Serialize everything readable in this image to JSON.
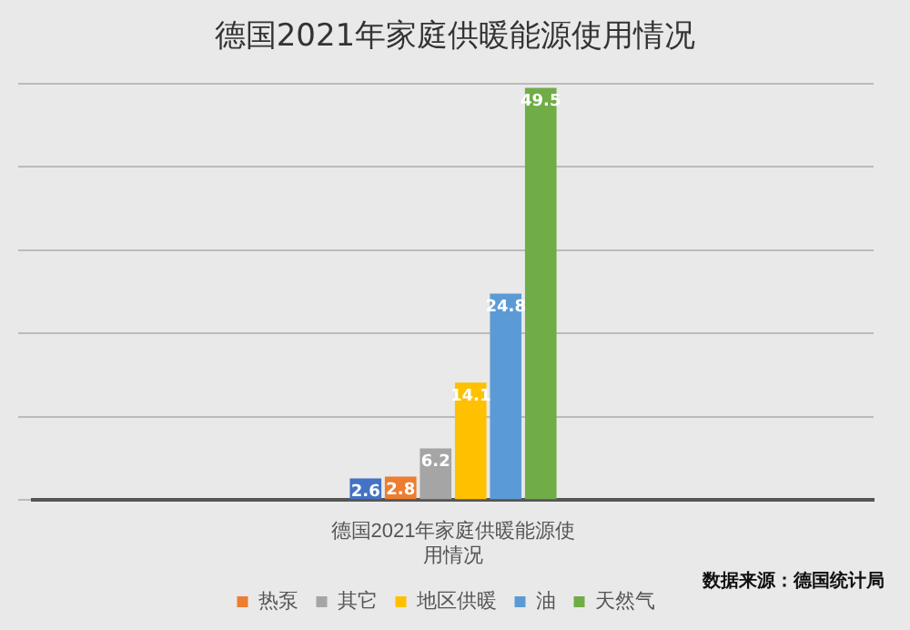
{
  "chart_data": {
    "type": "bar",
    "title": "德国2021年家庭供暖能源使用情况",
    "categories": [
      "德国2021年家庭供暖能源使用情况"
    ],
    "series": [
      {
        "color": "#4472c4",
        "values": [
          2.6
        ]
      },
      {
        "name": "热泵",
        "color": "#ed7d31",
        "values": [
          2.8
        ]
      },
      {
        "name": "其它",
        "color": "#a5a5a5",
        "values": [
          6.2
        ]
      },
      {
        "name": "地区供暖",
        "color": "#ffc000",
        "values": [
          14.1
        ]
      },
      {
        "name": "油",
        "color": "#5b9bd5",
        "values": [
          24.8
        ]
      },
      {
        "name": "天然气",
        "color": "#70ad47",
        "values": [
          49.5
        ]
      }
    ],
    "ylim": [
      0,
      50
    ],
    "yticks": [
      {
        "value": 0,
        "label": null
      },
      {
        "value": 10,
        "label": null
      },
      {
        "value": 20,
        "label": null
      },
      {
        "value": 30,
        "label": null
      },
      {
        "value": 40,
        "label": null
      },
      {
        "value": 50,
        "label": null
      }
    ],
    "tick_labels": "x",
    "grid": "y",
    "legend": "bottom",
    "data_labels": true,
    "annotations": [
      "数据来源：德国统计局"
    ]
  }
}
